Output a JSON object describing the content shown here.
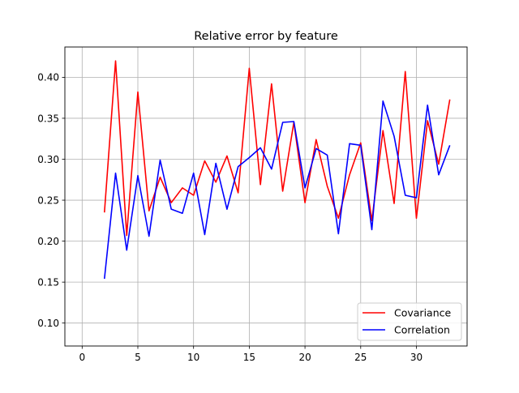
{
  "chart_data": {
    "type": "line",
    "title": "Relative error by feature",
    "xlabel": "",
    "ylabel": "",
    "xlim": [
      -1.55,
      34.55
    ],
    "ylim": [
      0.072,
      0.437
    ],
    "xticks": [
      0,
      5,
      10,
      15,
      20,
      25,
      30
    ],
    "yticks": [
      0.1,
      0.15,
      0.2,
      0.25,
      0.3,
      0.35,
      0.4
    ],
    "xtick_labels": [
      "0",
      "5",
      "10",
      "15",
      "20",
      "25",
      "30"
    ],
    "ytick_labels": [
      "0.10",
      "0.15",
      "0.20",
      "0.25",
      "0.30",
      "0.35",
      "0.40"
    ],
    "grid": true,
    "legend_position": "lower-right",
    "x": [
      2,
      3,
      4,
      5,
      6,
      7,
      8,
      9,
      10,
      11,
      12,
      13,
      14,
      15,
      16,
      17,
      18,
      19,
      20,
      21,
      22,
      23,
      24,
      25,
      26,
      27,
      28,
      29,
      30,
      31,
      32,
      33
    ],
    "series": [
      {
        "name": "Covariance",
        "color": "#ff0000",
        "values": [
          0.235,
          0.42,
          0.207,
          0.382,
          0.237,
          0.278,
          0.247,
          0.265,
          0.256,
          0.298,
          0.272,
          0.304,
          0.259,
          0.411,
          0.269,
          0.392,
          0.261,
          0.345,
          0.247,
          0.324,
          0.267,
          0.228,
          0.281,
          0.32,
          0.225,
          0.335,
          0.246,
          0.407,
          0.228,
          0.347,
          0.294,
          0.373
        ]
      },
      {
        "name": "Correlation",
        "color": "#0000ff",
        "values": [
          0.154,
          0.283,
          0.189,
          0.28,
          0.206,
          0.299,
          0.239,
          0.234,
          0.283,
          0.208,
          0.295,
          0.239,
          0.291,
          0.302,
          0.314,
          0.288,
          0.345,
          0.346,
          0.265,
          0.313,
          0.305,
          0.209,
          0.319,
          0.317,
          0.214,
          0.371,
          0.328,
          0.256,
          0.253,
          0.366,
          0.281,
          0.317
        ]
      }
    ]
  }
}
